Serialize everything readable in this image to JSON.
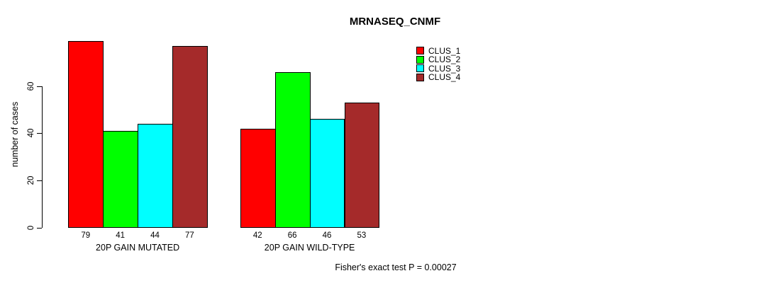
{
  "chart_data": {
    "type": "bar",
    "title": "MRNASEQ_CNMF",
    "ylabel": "number of cases",
    "xlabel": "",
    "categories": [
      "20P GAIN MUTATED",
      "20P GAIN WILD-TYPE"
    ],
    "series": [
      {
        "name": "CLUS_1",
        "color": "#FF0000",
        "values": [
          79,
          42
        ]
      },
      {
        "name": "CLUS_2",
        "color": "#00FF00",
        "values": [
          41,
          66
        ]
      },
      {
        "name": "CLUS_3",
        "color": "#00FFFF",
        "values": [
          44,
          46
        ]
      },
      {
        "name": "CLUS_4",
        "color": "#A52A2A",
        "values": [
          77,
          53
        ]
      }
    ],
    "yticks": [
      0,
      20,
      40,
      60
    ],
    "ylim": [
      0,
      60
    ],
    "grid": false,
    "legend_position": "top-right-inside",
    "annotation": "Fisher's exact test P = 0.00027"
  },
  "colors": {
    "background": "#FFFFFF",
    "axis": "#000000",
    "text": "#000000",
    "bar_border": "#000000"
  }
}
